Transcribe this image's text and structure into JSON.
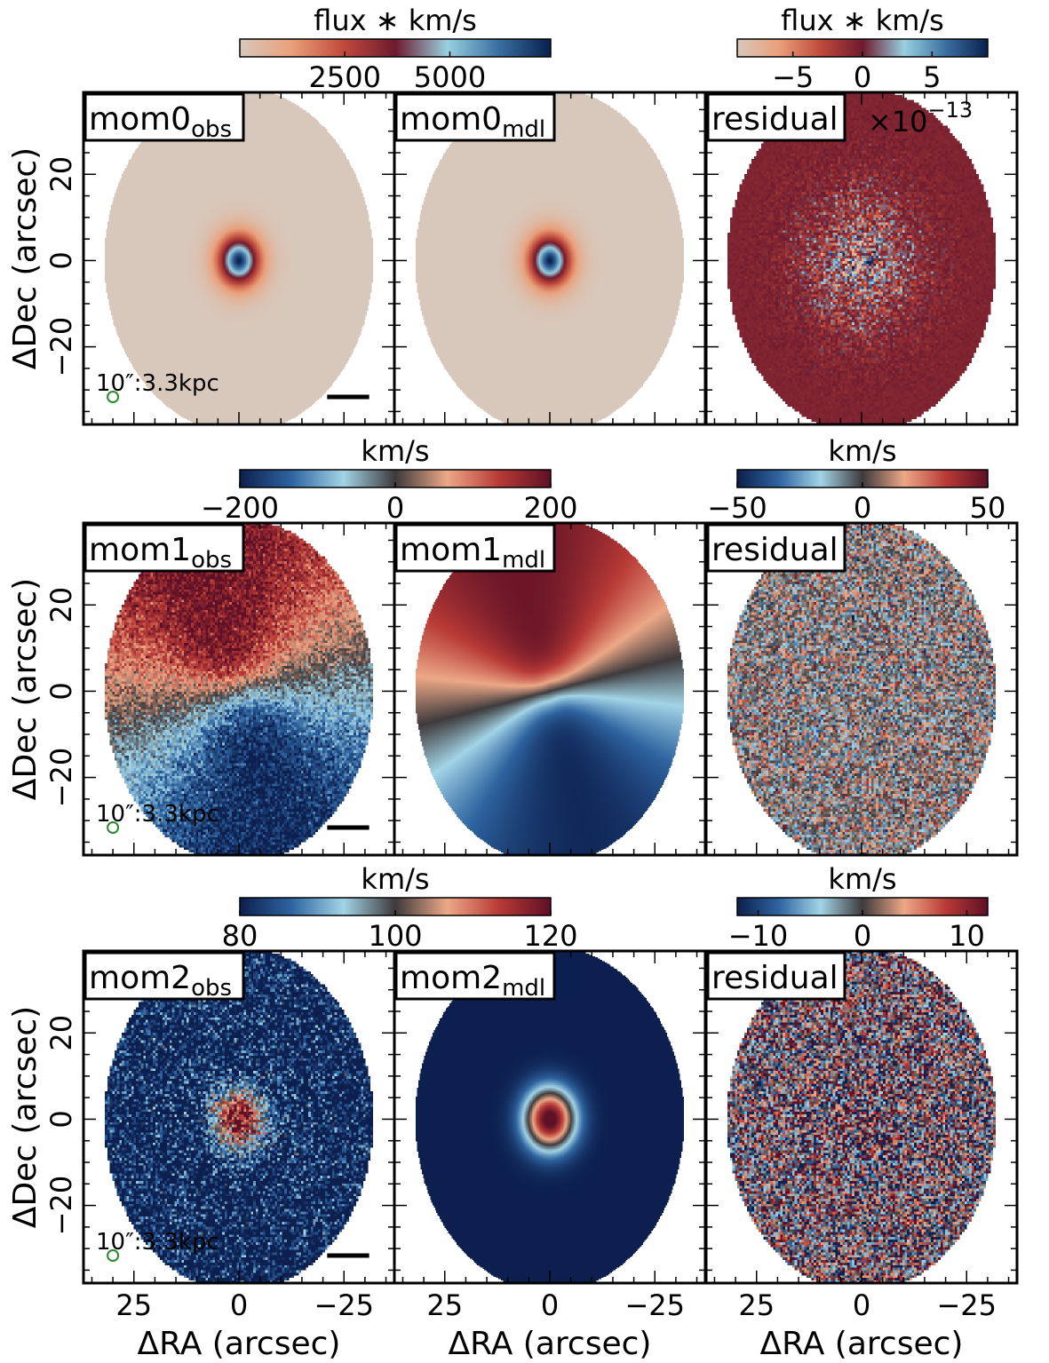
{
  "chart_data": {
    "type": "heatmap",
    "figure": {
      "xlabel": "ΔRA (arcsec)",
      "ylabel": "ΔDec (arcsec)",
      "xlim": [
        -37,
        37
      ],
      "ylim": [
        -38,
        39
      ],
      "xticks": [
        -25,
        0,
        25
      ],
      "yticks": [
        -20,
        0,
        20
      ],
      "ellipse_semi_axis_ra": 32,
      "ellipse_semi_axis_dec": 40,
      "scalebar_label": "10″:3.3kpc",
      "beam_color": "#2a8a2a"
    },
    "colorbars": [
      {
        "label": "flux ∗ km/s",
        "ticks": [
          "2500",
          "5000"
        ],
        "tick_values": [
          2500,
          5000
        ],
        "range": [
          0,
          7400
        ],
        "colors": [
          "#d8c8bc",
          "#e9a07a",
          "#c04a3c",
          "#6e1a2e",
          "#98d0e0",
          "#3a6ea0",
          "#08204e"
        ]
      },
      {
        "label": "flux ∗ km/s",
        "ticks": [
          "−5",
          "0",
          "5"
        ],
        "tick_values": [
          -5,
          0,
          5
        ],
        "range": [
          -9,
          9
        ],
        "colors": [
          "#d8c8bc",
          "#e9a07a",
          "#c04a3c",
          "#6e1a2e",
          "#98d0e0",
          "#3a6ea0",
          "#08204e"
        ]
      },
      {
        "label": "km/s",
        "ticks": [
          "−200",
          "0",
          "200"
        ],
        "tick_values": [
          -200,
          0,
          200
        ],
        "range": [
          -200,
          200
        ],
        "colors": [
          "#0c1f4e",
          "#2f64a0",
          "#a2d4e6",
          "#3e3a3c",
          "#eca887",
          "#b83a36",
          "#5e1026"
        ]
      },
      {
        "label": "km/s",
        "ticks": [
          "−50",
          "0",
          "50"
        ],
        "tick_values": [
          -50,
          0,
          50
        ],
        "range": [
          -50,
          50
        ],
        "colors": [
          "#0c1f4e",
          "#2f64a0",
          "#a2d4e6",
          "#3e3a3c",
          "#eca887",
          "#b83a36",
          "#5e1026"
        ]
      },
      {
        "label": "km/s",
        "ticks": [
          "80",
          "100",
          "120"
        ],
        "tick_values": [
          80,
          100,
          120
        ],
        "range": [
          80,
          120
        ],
        "colors": [
          "#0c1f4e",
          "#2f64a0",
          "#a2d4e6",
          "#3e3a3c",
          "#eca887",
          "#b83a36",
          "#5e1026"
        ]
      },
      {
        "label": "km/s",
        "ticks": [
          "−10",
          "0",
          "10"
        ],
        "tick_values": [
          -10,
          0,
          10
        ],
        "range": [
          -12,
          12
        ],
        "colors": [
          "#0c1f4e",
          "#2f64a0",
          "#a2d4e6",
          "#3e3a3c",
          "#eca887",
          "#b83a36",
          "#5e1026"
        ]
      }
    ],
    "panels": [
      {
        "id": "mom0_obs",
        "row": 0,
        "col": 0,
        "label_base": "mom0",
        "label_sub": "obs",
        "kind": "mom0",
        "noisy": false,
        "scalebar": true
      },
      {
        "id": "mom0_mdl",
        "row": 0,
        "col": 1,
        "label_base": "mom0",
        "label_sub": "mdl",
        "kind": "mom0",
        "noisy": false,
        "scalebar": false
      },
      {
        "id": "mom0_res",
        "row": 0,
        "col": 2,
        "label_base": "residual",
        "label_sub": "",
        "kind": "res0",
        "noisy": true,
        "scalebar": false,
        "exponent_base": "×10",
        "exponent_power": "−13"
      },
      {
        "id": "mom1_obs",
        "row": 1,
        "col": 0,
        "label_base": "mom1",
        "label_sub": "obs",
        "kind": "mom1",
        "noisy": true,
        "scalebar": true
      },
      {
        "id": "mom1_mdl",
        "row": 1,
        "col": 1,
        "label_base": "mom1",
        "label_sub": "mdl",
        "kind": "mom1",
        "noisy": false,
        "scalebar": false
      },
      {
        "id": "mom1_res",
        "row": 1,
        "col": 2,
        "label_base": "residual",
        "label_sub": "",
        "kind": "res1",
        "noisy": true,
        "scalebar": false
      },
      {
        "id": "mom2_obs",
        "row": 2,
        "col": 0,
        "label_base": "mom2",
        "label_sub": "obs",
        "kind": "mom2",
        "noisy": true,
        "scalebar": true
      },
      {
        "id": "mom2_mdl",
        "row": 2,
        "col": 1,
        "label_base": "mom2",
        "label_sub": "mdl",
        "kind": "mom2",
        "noisy": false,
        "scalebar": false
      },
      {
        "id": "mom2_res",
        "row": 2,
        "col": 2,
        "label_base": "residual",
        "label_sub": "",
        "kind": "res2",
        "noisy": true,
        "scalebar": false
      }
    ]
  }
}
